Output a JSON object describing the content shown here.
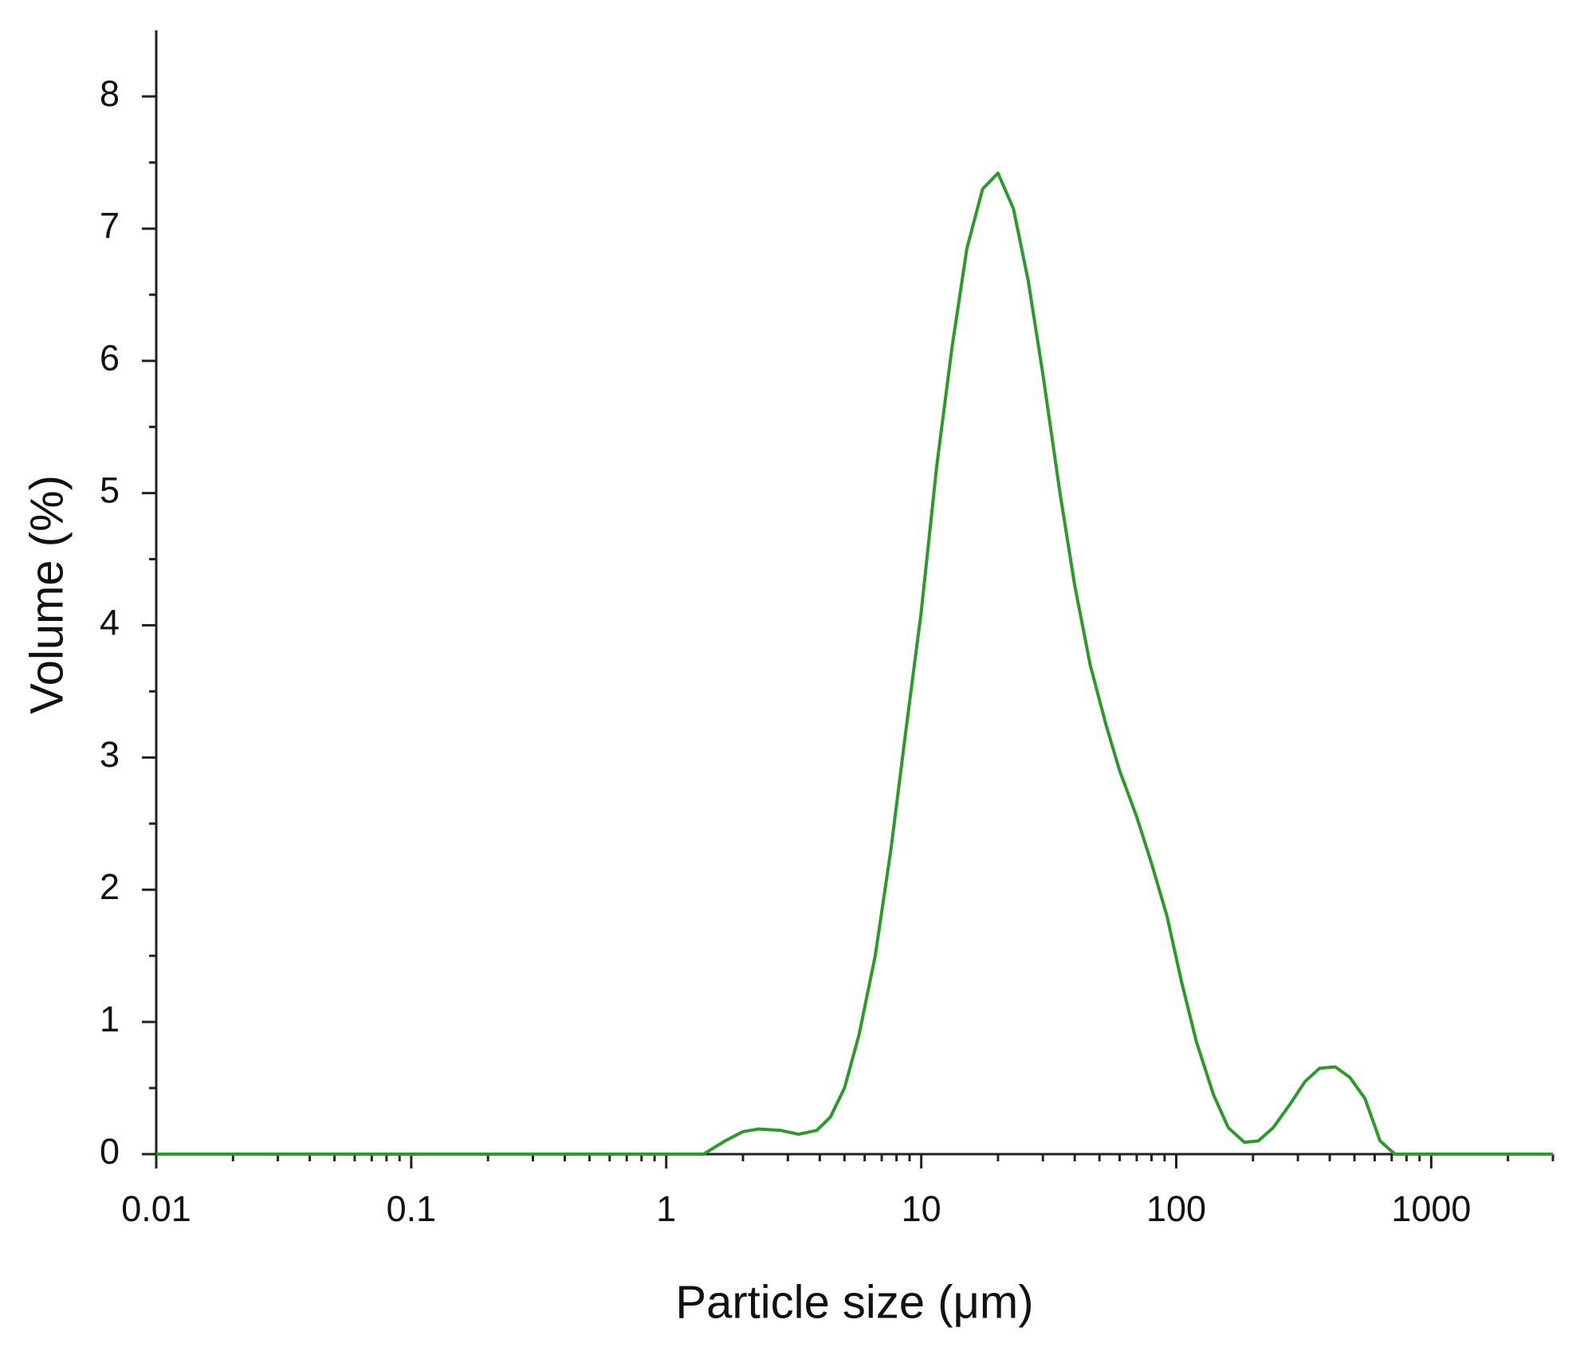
{
  "chart_data": {
    "type": "line",
    "xlabel": "Particle size (μm)",
    "ylabel": "Volume (%)",
    "x": [
      0.01,
      1.4,
      1.7,
      2,
      2.3,
      2.8,
      3.3,
      3.9,
      4.4,
      5,
      5.7,
      6.6,
      7.6,
      8.7,
      10,
      11.5,
      13.2,
      15.1,
      17.4,
      20,
      23,
      26.3,
      30,
      35,
      40,
      46,
      53,
      60,
      70,
      80,
      92,
      105,
      120,
      140,
      160,
      185,
      210,
      240,
      280,
      320,
      365,
      420,
      480,
      550,
      630,
      720,
      3000
    ],
    "values": [
      0,
      0,
      0.1,
      0.17,
      0.19,
      0.18,
      0.15,
      0.18,
      0.28,
      0.5,
      0.9,
      1.5,
      2.3,
      3.2,
      4.1,
      5.2,
      6.1,
      6.85,
      7.3,
      7.42,
      7.15,
      6.6,
      5.9,
      5.0,
      4.3,
      3.7,
      3.25,
      2.9,
      2.55,
      2.2,
      1.8,
      1.3,
      0.85,
      0.45,
      0.2,
      0.09,
      0.1,
      0.2,
      0.38,
      0.55,
      0.65,
      0.66,
      0.58,
      0.42,
      0.1,
      0,
      0
    ],
    "color": "#2a9a2a",
    "xscale": "log",
    "xlim": [
      0.01,
      3000
    ],
    "xticks": [
      0.01,
      0.1,
      1,
      10,
      100,
      1000
    ],
    "ylim": [
      0,
      8.5
    ],
    "yticks": [
      0,
      1,
      2,
      3,
      4,
      5,
      6,
      7,
      8
    ],
    "grid": false
  }
}
